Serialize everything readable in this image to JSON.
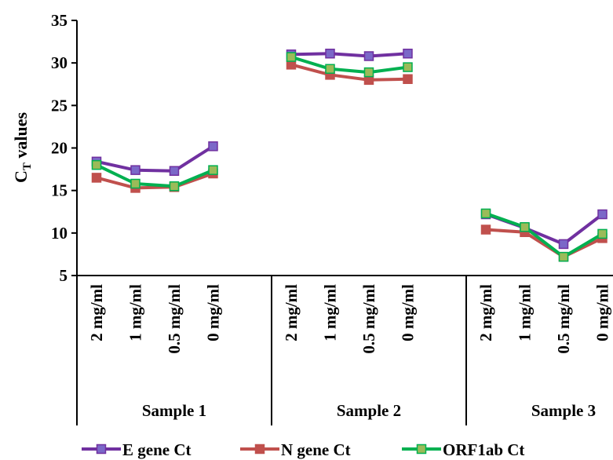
{
  "chart_data": {
    "type": "line",
    "ylabel": {
      "main": "C",
      "sub": "T",
      "rest": " values"
    },
    "ylim": [
      5,
      35
    ],
    "yticks": [
      5,
      10,
      15,
      20,
      25,
      30,
      35
    ],
    "grid": false,
    "legend_position": "bottom",
    "groups": [
      {
        "label": "Sample 1",
        "categories": [
          "2 mg/ml",
          "1 mg/ml",
          "0.5 mg/ml",
          "0 mg/ml"
        ]
      },
      {
        "label": "Sample 2",
        "categories": [
          "2 mg/ml",
          "1 mg/ml",
          "0.5 mg/ml",
          "0 mg/ml"
        ]
      },
      {
        "label": "Sample 3",
        "categories": [
          "2 mg/ml",
          "1 mg/ml",
          "0.5 mg/ml",
          "0 mg/ml"
        ]
      }
    ],
    "series": [
      {
        "name": "E gene Ct",
        "color": "#7030A0",
        "marker_color": "#7B68C8",
        "values": [
          [
            18.4,
            17.4,
            17.3,
            20.2
          ],
          [
            31.0,
            31.1,
            30.8,
            31.1
          ],
          [
            12.2,
            10.6,
            8.7,
            12.2
          ]
        ]
      },
      {
        "name": "N gene Ct",
        "color": "#C0504D",
        "marker_color": "#C0504D",
        "values": [
          [
            16.5,
            15.3,
            15.4,
            17.0
          ],
          [
            29.8,
            28.6,
            28.0,
            28.1
          ],
          [
            10.4,
            10.1,
            7.2,
            9.4
          ]
        ]
      },
      {
        "name": "ORF1ab Ct",
        "color": "#00B050",
        "marker_color": "#9BBB59",
        "values": [
          [
            18.0,
            15.8,
            15.5,
            17.4
          ],
          [
            30.7,
            29.3,
            28.9,
            29.5
          ],
          [
            12.3,
            10.7,
            7.2,
            9.9
          ]
        ]
      }
    ]
  }
}
